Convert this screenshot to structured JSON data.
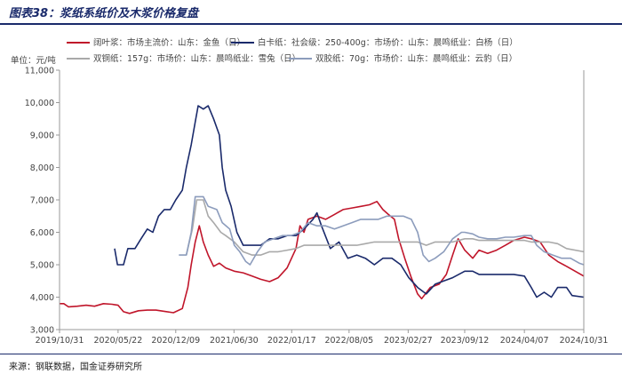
{
  "title": "图表38：浆纸系纸价及木浆价格复盘",
  "source": "来源：钢联数据，国金证券研究所",
  "chart_data": {
    "type": "line",
    "ylabel": "单位：元/吨",
    "ylim": [
      3000,
      11000
    ],
    "yticks": [
      "3,000",
      "4,000",
      "5,000",
      "6,000",
      "7,000",
      "8,000",
      "9,000",
      "10,000",
      "11,000"
    ],
    "xlim": [
      "2019-10-31",
      "2024-10-31"
    ],
    "xticks": [
      {
        "date": "2019-10-31",
        "label": "2019/10/31"
      },
      {
        "date": "2020-05-22",
        "label": "2020/05/22"
      },
      {
        "date": "2020-12-09",
        "label": "2020/12/09"
      },
      {
        "date": "2021-06-30",
        "label": "2021/06/30"
      },
      {
        "date": "2022-01-17",
        "label": "2022/01/17"
      },
      {
        "date": "2022-08-05",
        "label": "2022/08/05"
      },
      {
        "date": "2023-02-27",
        "label": "2023/02/27"
      },
      {
        "date": "2023-09-12",
        "label": "2023/09/12"
      },
      {
        "date": "2024-04-07",
        "label": "2024/04/07"
      },
      {
        "date": "2024-10-31",
        "label": "2024/10/31"
      }
    ],
    "grid": false,
    "legend": "top",
    "series": [
      {
        "name": "阔叶浆：市场主流价：山东：金鱼（日）",
        "color": "#c0152a",
        "width": 1.6,
        "points": [
          [
            "2019-10-31",
            3800
          ],
          [
            "2019-11-15",
            3800
          ],
          [
            "2019-12-01",
            3700
          ],
          [
            "2020-01-01",
            3720
          ],
          [
            "2020-02-01",
            3750
          ],
          [
            "2020-03-01",
            3720
          ],
          [
            "2020-04-01",
            3800
          ],
          [
            "2020-05-01",
            3780
          ],
          [
            "2020-05-22",
            3750
          ],
          [
            "2020-06-10",
            3550
          ],
          [
            "2020-07-01",
            3500
          ],
          [
            "2020-08-01",
            3580
          ],
          [
            "2020-09-01",
            3600
          ],
          [
            "2020-10-01",
            3600
          ],
          [
            "2020-11-01",
            3560
          ],
          [
            "2020-12-01",
            3520
          ],
          [
            "2021-01-01",
            3650
          ],
          [
            "2021-01-20",
            4300
          ],
          [
            "2021-02-01",
            5000
          ],
          [
            "2021-02-15",
            5700
          ],
          [
            "2021-03-01",
            6200
          ],
          [
            "2021-03-15",
            5700
          ],
          [
            "2021-04-01",
            5300
          ],
          [
            "2021-04-20",
            4950
          ],
          [
            "2021-05-10",
            5050
          ],
          [
            "2021-06-01",
            4900
          ],
          [
            "2021-07-01",
            4800
          ],
          [
            "2021-08-01",
            4750
          ],
          [
            "2021-09-01",
            4650
          ],
          [
            "2021-10-01",
            4550
          ],
          [
            "2021-11-01",
            4480
          ],
          [
            "2021-12-01",
            4600
          ],
          [
            "2022-01-01",
            4900
          ],
          [
            "2022-02-01",
            5500
          ],
          [
            "2022-02-15",
            6200
          ],
          [
            "2022-03-01",
            6000
          ],
          [
            "2022-03-15",
            6400
          ],
          [
            "2022-04-15",
            6500
          ],
          [
            "2022-05-15",
            6400
          ],
          [
            "2022-06-15",
            6550
          ],
          [
            "2022-07-15",
            6700
          ],
          [
            "2022-08-15",
            6750
          ],
          [
            "2022-09-15",
            6800
          ],
          [
            "2022-10-15",
            6850
          ],
          [
            "2022-11-10",
            6950
          ],
          [
            "2022-12-01",
            6700
          ],
          [
            "2022-12-20",
            6550
          ],
          [
            "2023-01-10",
            6400
          ],
          [
            "2023-01-25",
            5800
          ],
          [
            "2023-02-15",
            5200
          ],
          [
            "2023-03-10",
            4600
          ],
          [
            "2023-04-01",
            4100
          ],
          [
            "2023-04-15",
            3950
          ],
          [
            "2023-05-15",
            4300
          ],
          [
            "2023-06-15",
            4400
          ],
          [
            "2023-07-10",
            4700
          ],
          [
            "2023-08-01",
            5300
          ],
          [
            "2023-08-20",
            5800
          ],
          [
            "2023-09-12",
            5450
          ],
          [
            "2023-10-10",
            5200
          ],
          [
            "2023-11-01",
            5450
          ],
          [
            "2023-12-01",
            5350
          ],
          [
            "2024-01-01",
            5450
          ],
          [
            "2024-02-01",
            5600
          ],
          [
            "2024-03-01",
            5750
          ],
          [
            "2024-04-07",
            5850
          ],
          [
            "2024-05-01",
            5800
          ],
          [
            "2024-06-01",
            5700
          ],
          [
            "2024-07-01",
            5300
          ],
          [
            "2024-08-01",
            5100
          ],
          [
            "2024-09-01",
            4950
          ],
          [
            "2024-10-01",
            4800
          ],
          [
            "2024-10-31",
            4650
          ]
        ]
      },
      {
        "name": "白卡纸：社会级：250-400g：市场价：山东：晨鸣纸业：白杨（日）",
        "color": "#1a2a6b",
        "width": 1.6,
        "points": [
          [
            "2020-05-10",
            5500
          ],
          [
            "2020-05-20",
            5000
          ],
          [
            "2020-06-10",
            5000
          ],
          [
            "2020-06-25",
            5500
          ],
          [
            "2020-07-20",
            5500
          ],
          [
            "2020-08-10",
            5800
          ],
          [
            "2020-09-01",
            6100
          ],
          [
            "2020-09-20",
            6000
          ],
          [
            "2020-10-10",
            6500
          ],
          [
            "2020-10-30",
            6700
          ],
          [
            "2020-11-20",
            6700
          ],
          [
            "2020-12-09",
            7000
          ],
          [
            "2021-01-01",
            7300
          ],
          [
            "2021-01-15",
            8000
          ],
          [
            "2021-02-01",
            8700
          ],
          [
            "2021-02-15",
            9400
          ],
          [
            "2021-02-25",
            9900
          ],
          [
            "2021-03-15",
            9800
          ],
          [
            "2021-04-01",
            9900
          ],
          [
            "2021-04-20",
            9500
          ],
          [
            "2021-05-10",
            9000
          ],
          [
            "2021-05-20",
            8000
          ],
          [
            "2021-06-01",
            7300
          ],
          [
            "2021-06-20",
            6800
          ],
          [
            "2021-07-10",
            6000
          ],
          [
            "2021-08-01",
            5600
          ],
          [
            "2021-09-01",
            5600
          ],
          [
            "2021-10-01",
            5600
          ],
          [
            "2021-11-01",
            5800
          ],
          [
            "2021-12-01",
            5800
          ],
          [
            "2022-01-01",
            5900
          ],
          [
            "2022-02-01",
            5900
          ],
          [
            "2022-03-01",
            6100
          ],
          [
            "2022-04-01",
            6400
          ],
          [
            "2022-04-15",
            6600
          ],
          [
            "2022-05-01",
            6200
          ],
          [
            "2022-06-01",
            5500
          ],
          [
            "2022-07-01",
            5700
          ],
          [
            "2022-08-01",
            5200
          ],
          [
            "2022-09-01",
            5300
          ],
          [
            "2022-10-01",
            5200
          ],
          [
            "2022-11-01",
            5000
          ],
          [
            "2022-12-01",
            5200
          ],
          [
            "2023-01-01",
            5200
          ],
          [
            "2023-02-01",
            5000
          ],
          [
            "2023-03-01",
            4600
          ],
          [
            "2023-04-01",
            4300
          ],
          [
            "2023-05-01",
            4100
          ],
          [
            "2023-06-01",
            4400
          ],
          [
            "2023-07-01",
            4500
          ],
          [
            "2023-08-01",
            4600
          ],
          [
            "2023-09-12",
            4800
          ],
          [
            "2023-10-10",
            4800
          ],
          [
            "2023-11-01",
            4700
          ],
          [
            "2023-12-01",
            4700
          ],
          [
            "2024-01-01",
            4700
          ],
          [
            "2024-02-01",
            4700
          ],
          [
            "2024-03-01",
            4700
          ],
          [
            "2024-04-07",
            4650
          ],
          [
            "2024-05-01",
            4300
          ],
          [
            "2024-05-20",
            4000
          ],
          [
            "2024-06-15",
            4150
          ],
          [
            "2024-07-10",
            4000
          ],
          [
            "2024-08-01",
            4300
          ],
          [
            "2024-09-01",
            4300
          ],
          [
            "2024-09-20",
            4050
          ],
          [
            "2024-10-31",
            4000
          ]
        ]
      },
      {
        "name": "双铜纸：157g：市场价：山东：晨鸣纸业：雪兔（日）",
        "color": "#a9a9a9",
        "width": 1.6,
        "points": [
          [
            "2021-01-15",
            5300
          ],
          [
            "2021-02-05",
            6100
          ],
          [
            "2021-02-20",
            7000
          ],
          [
            "2021-03-15",
            7000
          ],
          [
            "2021-04-01",
            6500
          ],
          [
            "2021-04-20",
            6300
          ],
          [
            "2021-05-15",
            6000
          ],
          [
            "2021-06-01",
            5900
          ],
          [
            "2021-07-01",
            5700
          ],
          [
            "2021-08-01",
            5400
          ],
          [
            "2021-09-01",
            5300
          ],
          [
            "2021-10-01",
            5300
          ],
          [
            "2021-11-01",
            5400
          ],
          [
            "2021-12-01",
            5400
          ],
          [
            "2022-01-01",
            5450
          ],
          [
            "2022-02-01",
            5500
          ],
          [
            "2022-03-01",
            5600
          ],
          [
            "2022-04-01",
            5600
          ],
          [
            "2022-05-01",
            5600
          ],
          [
            "2022-06-01",
            5600
          ],
          [
            "2022-07-01",
            5600
          ],
          [
            "2022-08-01",
            5600
          ],
          [
            "2022-09-01",
            5600
          ],
          [
            "2022-10-01",
            5650
          ],
          [
            "2022-11-01",
            5700
          ],
          [
            "2022-12-01",
            5700
          ],
          [
            "2023-01-01",
            5700
          ],
          [
            "2023-02-01",
            5700
          ],
          [
            "2023-03-01",
            5700
          ],
          [
            "2023-04-01",
            5700
          ],
          [
            "2023-05-01",
            5600
          ],
          [
            "2023-06-01",
            5700
          ],
          [
            "2023-07-01",
            5700
          ],
          [
            "2023-08-01",
            5700
          ],
          [
            "2023-09-12",
            5800
          ],
          [
            "2023-10-10",
            5800
          ],
          [
            "2023-11-01",
            5750
          ],
          [
            "2023-12-01",
            5750
          ],
          [
            "2024-01-01",
            5750
          ],
          [
            "2024-02-01",
            5750
          ],
          [
            "2024-03-01",
            5750
          ],
          [
            "2024-04-07",
            5750
          ],
          [
            "2024-05-01",
            5700
          ],
          [
            "2024-06-01",
            5700
          ],
          [
            "2024-07-01",
            5700
          ],
          [
            "2024-08-01",
            5650
          ],
          [
            "2024-09-01",
            5500
          ],
          [
            "2024-10-31",
            5400
          ]
        ]
      },
      {
        "name": "双胶纸：70g：市场价：山东：晨鸣纸业：云豹（日）",
        "color": "#8c9cbc",
        "width": 1.6,
        "points": [
          [
            "2020-12-20",
            5300
          ],
          [
            "2021-01-15",
            5300
          ],
          [
            "2021-02-01",
            6000
          ],
          [
            "2021-02-15",
            7100
          ],
          [
            "2021-03-15",
            7100
          ],
          [
            "2021-04-01",
            6800
          ],
          [
            "2021-05-01",
            6700
          ],
          [
            "2021-05-20",
            6300
          ],
          [
            "2021-06-15",
            6100
          ],
          [
            "2021-07-01",
            5600
          ],
          [
            "2021-07-20",
            5400
          ],
          [
            "2021-08-10",
            5100
          ],
          [
            "2021-08-25",
            5000
          ],
          [
            "2021-09-20",
            5400
          ],
          [
            "2021-10-15",
            5700
          ],
          [
            "2021-11-15",
            5800
          ],
          [
            "2021-12-15",
            5900
          ],
          [
            "2022-01-15",
            5900
          ],
          [
            "2022-02-15",
            6000
          ],
          [
            "2022-03-15",
            6300
          ],
          [
            "2022-04-15",
            6200
          ],
          [
            "2022-05-15",
            6200
          ],
          [
            "2022-06-15",
            6100
          ],
          [
            "2022-07-15",
            6200
          ],
          [
            "2022-08-15",
            6300
          ],
          [
            "2022-09-15",
            6400
          ],
          [
            "2022-10-15",
            6400
          ],
          [
            "2022-11-15",
            6400
          ],
          [
            "2022-12-15",
            6500
          ],
          [
            "2023-01-15",
            6500
          ],
          [
            "2023-02-10",
            6500
          ],
          [
            "2023-03-10",
            6400
          ],
          [
            "2023-04-01",
            6000
          ],
          [
            "2023-04-20",
            5300
          ],
          [
            "2023-05-10",
            5100
          ],
          [
            "2023-06-01",
            5200
          ],
          [
            "2023-07-01",
            5400
          ],
          [
            "2023-08-01",
            5800
          ],
          [
            "2023-09-01",
            6000
          ],
          [
            "2023-09-12",
            6000
          ],
          [
            "2023-10-10",
            5950
          ],
          [
            "2023-11-01",
            5850
          ],
          [
            "2023-12-01",
            5800
          ],
          [
            "2024-01-01",
            5800
          ],
          [
            "2024-02-01",
            5850
          ],
          [
            "2024-03-01",
            5850
          ],
          [
            "2024-04-07",
            5900
          ],
          [
            "2024-05-01",
            5900
          ],
          [
            "2024-05-20",
            5600
          ],
          [
            "2024-06-15",
            5400
          ],
          [
            "2024-07-15",
            5300
          ],
          [
            "2024-08-15",
            5200
          ],
          [
            "2024-09-15",
            5200
          ],
          [
            "2024-10-15",
            5050
          ],
          [
            "2024-10-31",
            5000
          ]
        ]
      }
    ]
  }
}
